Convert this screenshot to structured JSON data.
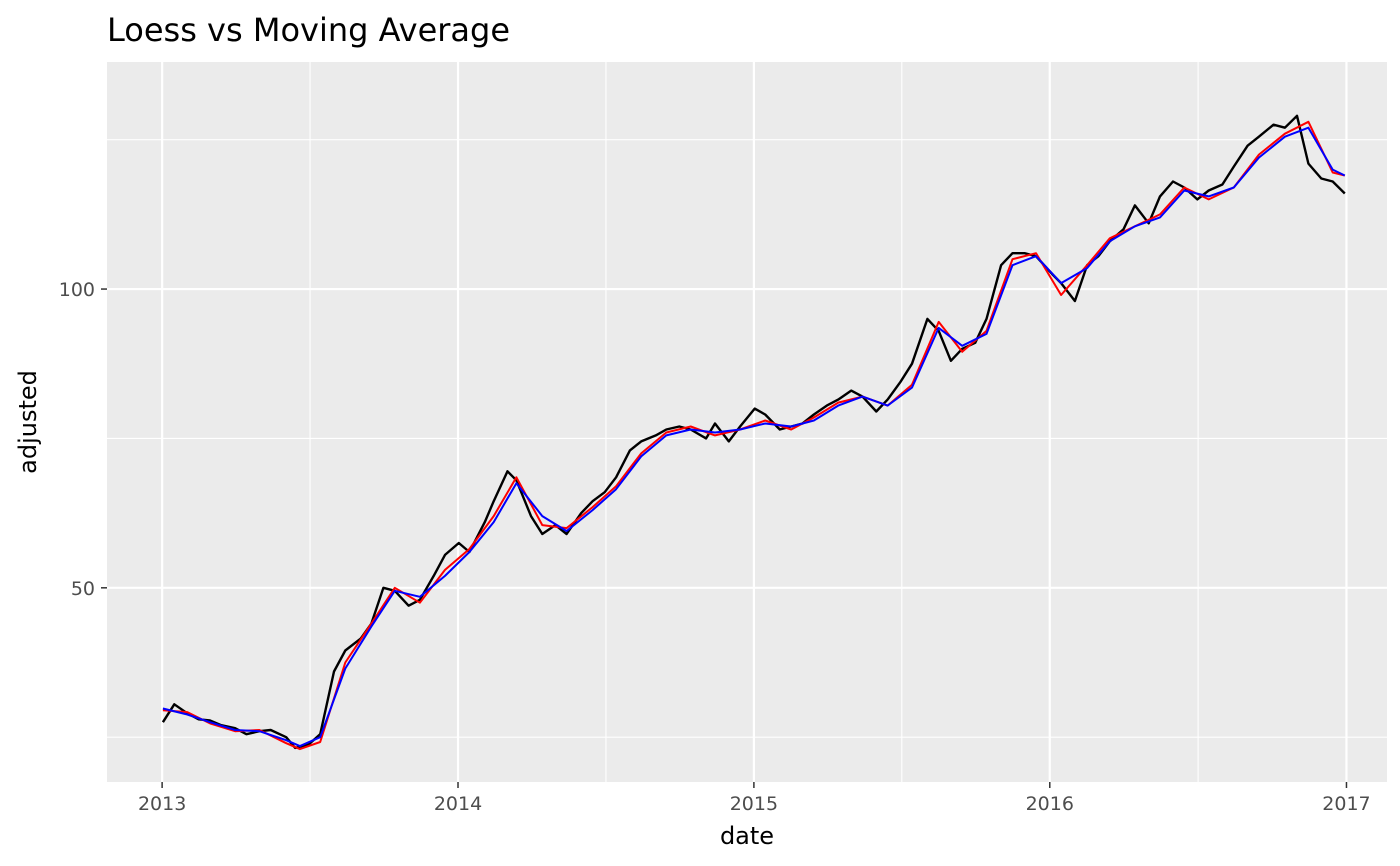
{
  "chart_data": {
    "type": "line",
    "title": "Loess vs Moving Average",
    "xlabel": "date",
    "ylabel": "adjusted",
    "xlim": [
      "2012-10-25",
      "2017-02-20"
    ],
    "ylim": [
      17.5,
      138
    ],
    "x_ticks": [
      "2013-01-01",
      "2014-01-01",
      "2015-01-01",
      "2016-01-01",
      "2017-01-01"
    ],
    "x_tick_labels": [
      "2013",
      "2014",
      "2015",
      "2016",
      "2017"
    ],
    "y_ticks": [
      50,
      100
    ],
    "y_tick_labels": [
      "50",
      "100"
    ],
    "grid": true,
    "legend": "none",
    "colors": {
      "panel": "#ebebeb",
      "grid": "#ffffff",
      "adjusted": "#000000",
      "moving_average": "#ff0000",
      "loess": "#0000ff"
    },
    "series": [
      {
        "color": "#000000",
        "x": [
          "2013-01-02",
          "2013-01-16",
          "2013-02-01",
          "2013-02-15",
          "2013-03-01",
          "2013-03-15",
          "2013-04-01",
          "2013-04-15",
          "2013-05-01",
          "2013-05-15",
          "2013-06-03",
          "2013-06-14",
          "2013-07-01",
          "2013-07-15",
          "2013-08-01",
          "2013-08-15",
          "2013-09-03",
          "2013-09-16",
          "2013-10-01",
          "2013-10-15",
          "2013-11-01",
          "2013-11-15",
          "2013-12-02",
          "2013-12-16",
          "2014-01-02",
          "2014-01-15",
          "2014-02-03",
          "2014-02-14",
          "2014-03-03",
          "2014-03-14",
          "2014-04-01",
          "2014-04-15",
          "2014-05-01",
          "2014-05-15",
          "2014-06-02",
          "2014-06-16",
          "2014-07-01",
          "2014-07-15",
          "2014-08-01",
          "2014-08-15",
          "2014-09-02",
          "2014-09-15",
          "2014-10-01",
          "2014-10-15",
          "2014-11-03",
          "2014-11-14",
          "2014-12-01",
          "2014-12-15",
          "2015-01-02",
          "2015-01-15",
          "2015-02-02",
          "2015-02-16",
          "2015-03-02",
          "2015-03-16",
          "2015-04-01",
          "2015-04-15",
          "2015-05-01",
          "2015-05-15",
          "2015-06-01",
          "2015-06-15",
          "2015-07-01",
          "2015-07-15",
          "2015-08-03",
          "2015-08-17",
          "2015-09-01",
          "2015-09-15",
          "2015-10-01",
          "2015-10-15",
          "2015-11-02",
          "2015-11-16",
          "2015-12-01",
          "2015-12-15",
          "2016-01-04",
          "2016-01-15",
          "2016-02-01",
          "2016-02-16",
          "2016-03-01",
          "2016-03-15",
          "2016-04-01",
          "2016-04-15",
          "2016-05-02",
          "2016-05-16",
          "2016-06-01",
          "2016-06-15",
          "2016-07-01",
          "2016-07-15",
          "2016-08-01",
          "2016-08-15",
          "2016-09-01",
          "2016-09-15",
          "2016-10-03",
          "2016-10-17",
          "2016-11-01",
          "2016-11-15",
          "2016-12-01",
          "2016-12-15",
          "2016-12-30"
        ],
        "values": [
          27.5,
          30.5,
          29.0,
          28.0,
          27.8,
          27.0,
          26.5,
          25.5,
          26.0,
          26.2,
          25.0,
          23.2,
          23.8,
          25.5,
          36.0,
          39.5,
          41.5,
          44.0,
          50.0,
          49.5,
          47.0,
          48.0,
          52.0,
          55.5,
          57.5,
          56.0,
          61.0,
          64.5,
          69.5,
          68.0,
          62.0,
          59.0,
          60.5,
          59.0,
          62.5,
          64.5,
          66.0,
          68.5,
          73.0,
          74.5,
          75.5,
          76.5,
          77.0,
          76.5,
          75.0,
          77.5,
          74.5,
          77.0,
          80.0,
          79.0,
          76.5,
          77.0,
          77.5,
          79.0,
          80.5,
          81.5,
          83.0,
          82.0,
          79.5,
          81.5,
          84.5,
          87.5,
          95.0,
          93.0,
          88.0,
          90.0,
          91.0,
          95.0,
          104.0,
          106.0,
          106.0,
          105.5,
          102.5,
          101.0,
          98.0,
          104.0,
          105.5,
          108.0,
          110.0,
          114.0,
          111.0,
          115.5,
          118.0,
          117.0,
          115.0,
          116.5,
          117.5,
          120.5,
          124.0,
          125.5,
          127.5,
          127.0,
          129.0,
          121.0,
          118.5,
          118.0,
          116.0
        ]
      },
      {
        "color": "#ff0000",
        "x": [
          "2013-01-02",
          "2013-02-01",
          "2013-03-01",
          "2013-04-01",
          "2013-05-01",
          "2013-06-03",
          "2013-06-20",
          "2013-07-15",
          "2013-08-15",
          "2013-09-16",
          "2013-10-15",
          "2013-11-15",
          "2013-12-16",
          "2014-01-15",
          "2014-02-14",
          "2014-03-14",
          "2014-04-15",
          "2014-05-15",
          "2014-06-16",
          "2014-07-15",
          "2014-08-15",
          "2014-09-15",
          "2014-10-15",
          "2014-11-14",
          "2014-12-15",
          "2015-01-15",
          "2015-02-16",
          "2015-03-16",
          "2015-04-15",
          "2015-05-15",
          "2015-06-15",
          "2015-07-15",
          "2015-08-17",
          "2015-09-15",
          "2015-10-15",
          "2015-11-16",
          "2015-12-15",
          "2016-01-15",
          "2016-02-16",
          "2016-03-15",
          "2016-04-15",
          "2016-05-16",
          "2016-06-15",
          "2016-07-15",
          "2016-08-15",
          "2016-09-15",
          "2016-10-17",
          "2016-11-15",
          "2016-12-15",
          "2016-12-30"
        ],
        "values": [
          29.5,
          29.2,
          27.3,
          26.0,
          26.2,
          24.0,
          23.0,
          24.2,
          37.5,
          44.0,
          50.0,
          47.5,
          53.0,
          56.5,
          62.0,
          68.5,
          60.5,
          60.0,
          63.5,
          67.0,
          72.5,
          76.0,
          77.0,
          75.5,
          76.5,
          78.0,
          76.5,
          78.5,
          81.0,
          82.0,
          80.5,
          84.0,
          94.5,
          89.5,
          93.0,
          105.0,
          106.0,
          99.0,
          104.0,
          108.5,
          110.5,
          112.5,
          117.0,
          115.0,
          117.0,
          122.5,
          126.0,
          128.0,
          119.5,
          119.0
        ]
      },
      {
        "color": "#0000ff",
        "x": [
          "2013-01-02",
          "2013-02-01",
          "2013-03-01",
          "2013-04-01",
          "2013-05-01",
          "2013-06-03",
          "2013-06-20",
          "2013-07-15",
          "2013-08-15",
          "2013-09-16",
          "2013-10-15",
          "2013-11-15",
          "2013-12-16",
          "2014-01-15",
          "2014-02-14",
          "2014-03-14",
          "2014-04-15",
          "2014-05-15",
          "2014-06-16",
          "2014-07-15",
          "2014-08-15",
          "2014-09-15",
          "2014-10-15",
          "2014-11-14",
          "2014-12-15",
          "2015-01-15",
          "2015-02-16",
          "2015-03-16",
          "2015-04-15",
          "2015-05-15",
          "2015-06-15",
          "2015-07-15",
          "2015-08-17",
          "2015-09-15",
          "2015-10-15",
          "2015-11-16",
          "2015-12-15",
          "2016-01-15",
          "2016-02-16",
          "2016-03-15",
          "2016-04-15",
          "2016-05-16",
          "2016-06-15",
          "2016-07-15",
          "2016-08-15",
          "2016-09-15",
          "2016-10-17",
          "2016-11-15",
          "2016-12-15",
          "2016-12-30"
        ],
        "values": [
          29.8,
          28.8,
          27.5,
          26.2,
          26.0,
          24.5,
          23.5,
          25.0,
          36.5,
          43.5,
          49.5,
          48.5,
          52.0,
          56.0,
          61.0,
          67.5,
          62.0,
          59.5,
          63.0,
          66.5,
          72.0,
          75.5,
          76.5,
          76.0,
          76.5,
          77.5,
          77.0,
          78.0,
          80.5,
          82.0,
          80.5,
          83.5,
          93.5,
          90.5,
          92.5,
          104.0,
          105.5,
          101.0,
          103.5,
          108.0,
          110.5,
          112.0,
          116.5,
          115.5,
          117.0,
          122.0,
          125.5,
          127.0,
          120.0,
          119.0
        ]
      }
    ]
  }
}
